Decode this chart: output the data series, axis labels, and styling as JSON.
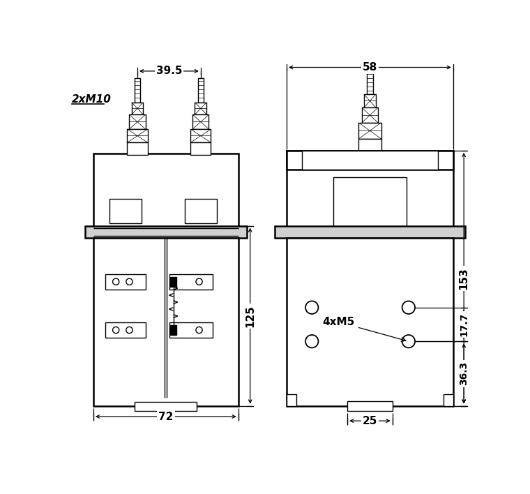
{
  "bg_color": "#ffffff",
  "line_color": "#000000",
  "lw_main": 1.8,
  "lw_thin": 1.0,
  "lw_dim": 0.9,
  "dims": {
    "left_39_5": "39.5",
    "left_125": "125",
    "left_72": "72",
    "left_label": "2xM10",
    "right_58": "58",
    "right_153": "153",
    "right_17_7": "17.7",
    "right_36_3": "36.3",
    "right_25": "25",
    "right_label": "4xM5"
  }
}
